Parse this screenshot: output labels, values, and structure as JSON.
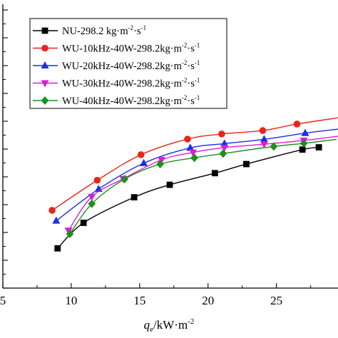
{
  "chart_data": {
    "type": "line",
    "xlim": [
      5,
      29.5
    ],
    "ylim": [
      0,
      1
    ],
    "xticks": [
      5,
      10,
      15,
      20,
      25
    ],
    "xtick_labels": [
      "5",
      "10",
      "15",
      "20",
      "25"
    ],
    "xlabel": {
      "main": "q",
      "subscript": "e",
      "unit": "/kW·m",
      "superscript": "-2"
    },
    "grid": false,
    "legend_position": "top-left",
    "series": [
      {
        "name": "NU-298.2 kg·m",
        "name_sup1": "-2",
        "name_mid": "·s",
        "name_sup2": "-1",
        "marker": "square",
        "color": "#000000",
        "x": [
          9.0,
          10.9,
          14.6,
          17.2,
          20.5,
          22.8,
          26.9,
          28.1
        ],
        "y": [
          0.14,
          0.23,
          0.32,
          0.364,
          0.405,
          0.437,
          0.488,
          0.496
        ]
      },
      {
        "name": "WU-10kHz-40W-298.2kg·m",
        "name_sup1": "-2",
        "name_mid": "·s",
        "name_sup2": "-1",
        "marker": "circle",
        "color": "#e8241c",
        "x": [
          8.6,
          11.9,
          15.1,
          18.5,
          21.0,
          24.0,
          26.5,
          29.5
        ],
        "y": [
          0.274,
          0.38,
          0.47,
          0.525,
          0.543,
          0.555,
          0.578,
          0.6
        ]
      },
      {
        "name": "WU-20kHz-40W-298.2kg·m",
        "name_sup1": "-2",
        "name_mid": "·s",
        "name_sup2": "-1",
        "marker": "triangle-up",
        "color": "#1b2ee8",
        "x": [
          8.9,
          12.0,
          15.3,
          18.7,
          21.2,
          24.1,
          27.1,
          29.5
        ],
        "y": [
          0.237,
          0.349,
          0.44,
          0.494,
          0.509,
          0.524,
          0.546,
          0.56
        ]
      },
      {
        "name": "WU-30kHz-40W-298.2kg·m",
        "name_sup1": "-2",
        "name_mid": "·s",
        "name_sup2": "-1",
        "marker": "triangle-down",
        "color": "#e01bd5",
        "x": [
          9.8,
          11.5,
          13.8,
          16.6,
          18.9,
          21.2,
          24.1,
          27.0,
          29.5
        ],
        "y": [
          0.203,
          0.322,
          0.385,
          0.452,
          0.478,
          0.495,
          0.507,
          0.52,
          0.535
        ]
      },
      {
        "name": "WU-40kHz-40W-298.2kg·m",
        "name_sup1": "-2",
        "name_mid": "·s",
        "name_sup2": "-1",
        "marker": "diamond",
        "color": "#1e8f1e",
        "x": [
          9.9,
          11.5,
          13.9,
          16.5,
          19.0,
          21.1,
          24.8,
          27.0,
          29.4
        ],
        "y": [
          0.191,
          0.297,
          0.384,
          0.437,
          0.459,
          0.474,
          0.499,
          0.51,
          0.524
        ]
      }
    ]
  }
}
